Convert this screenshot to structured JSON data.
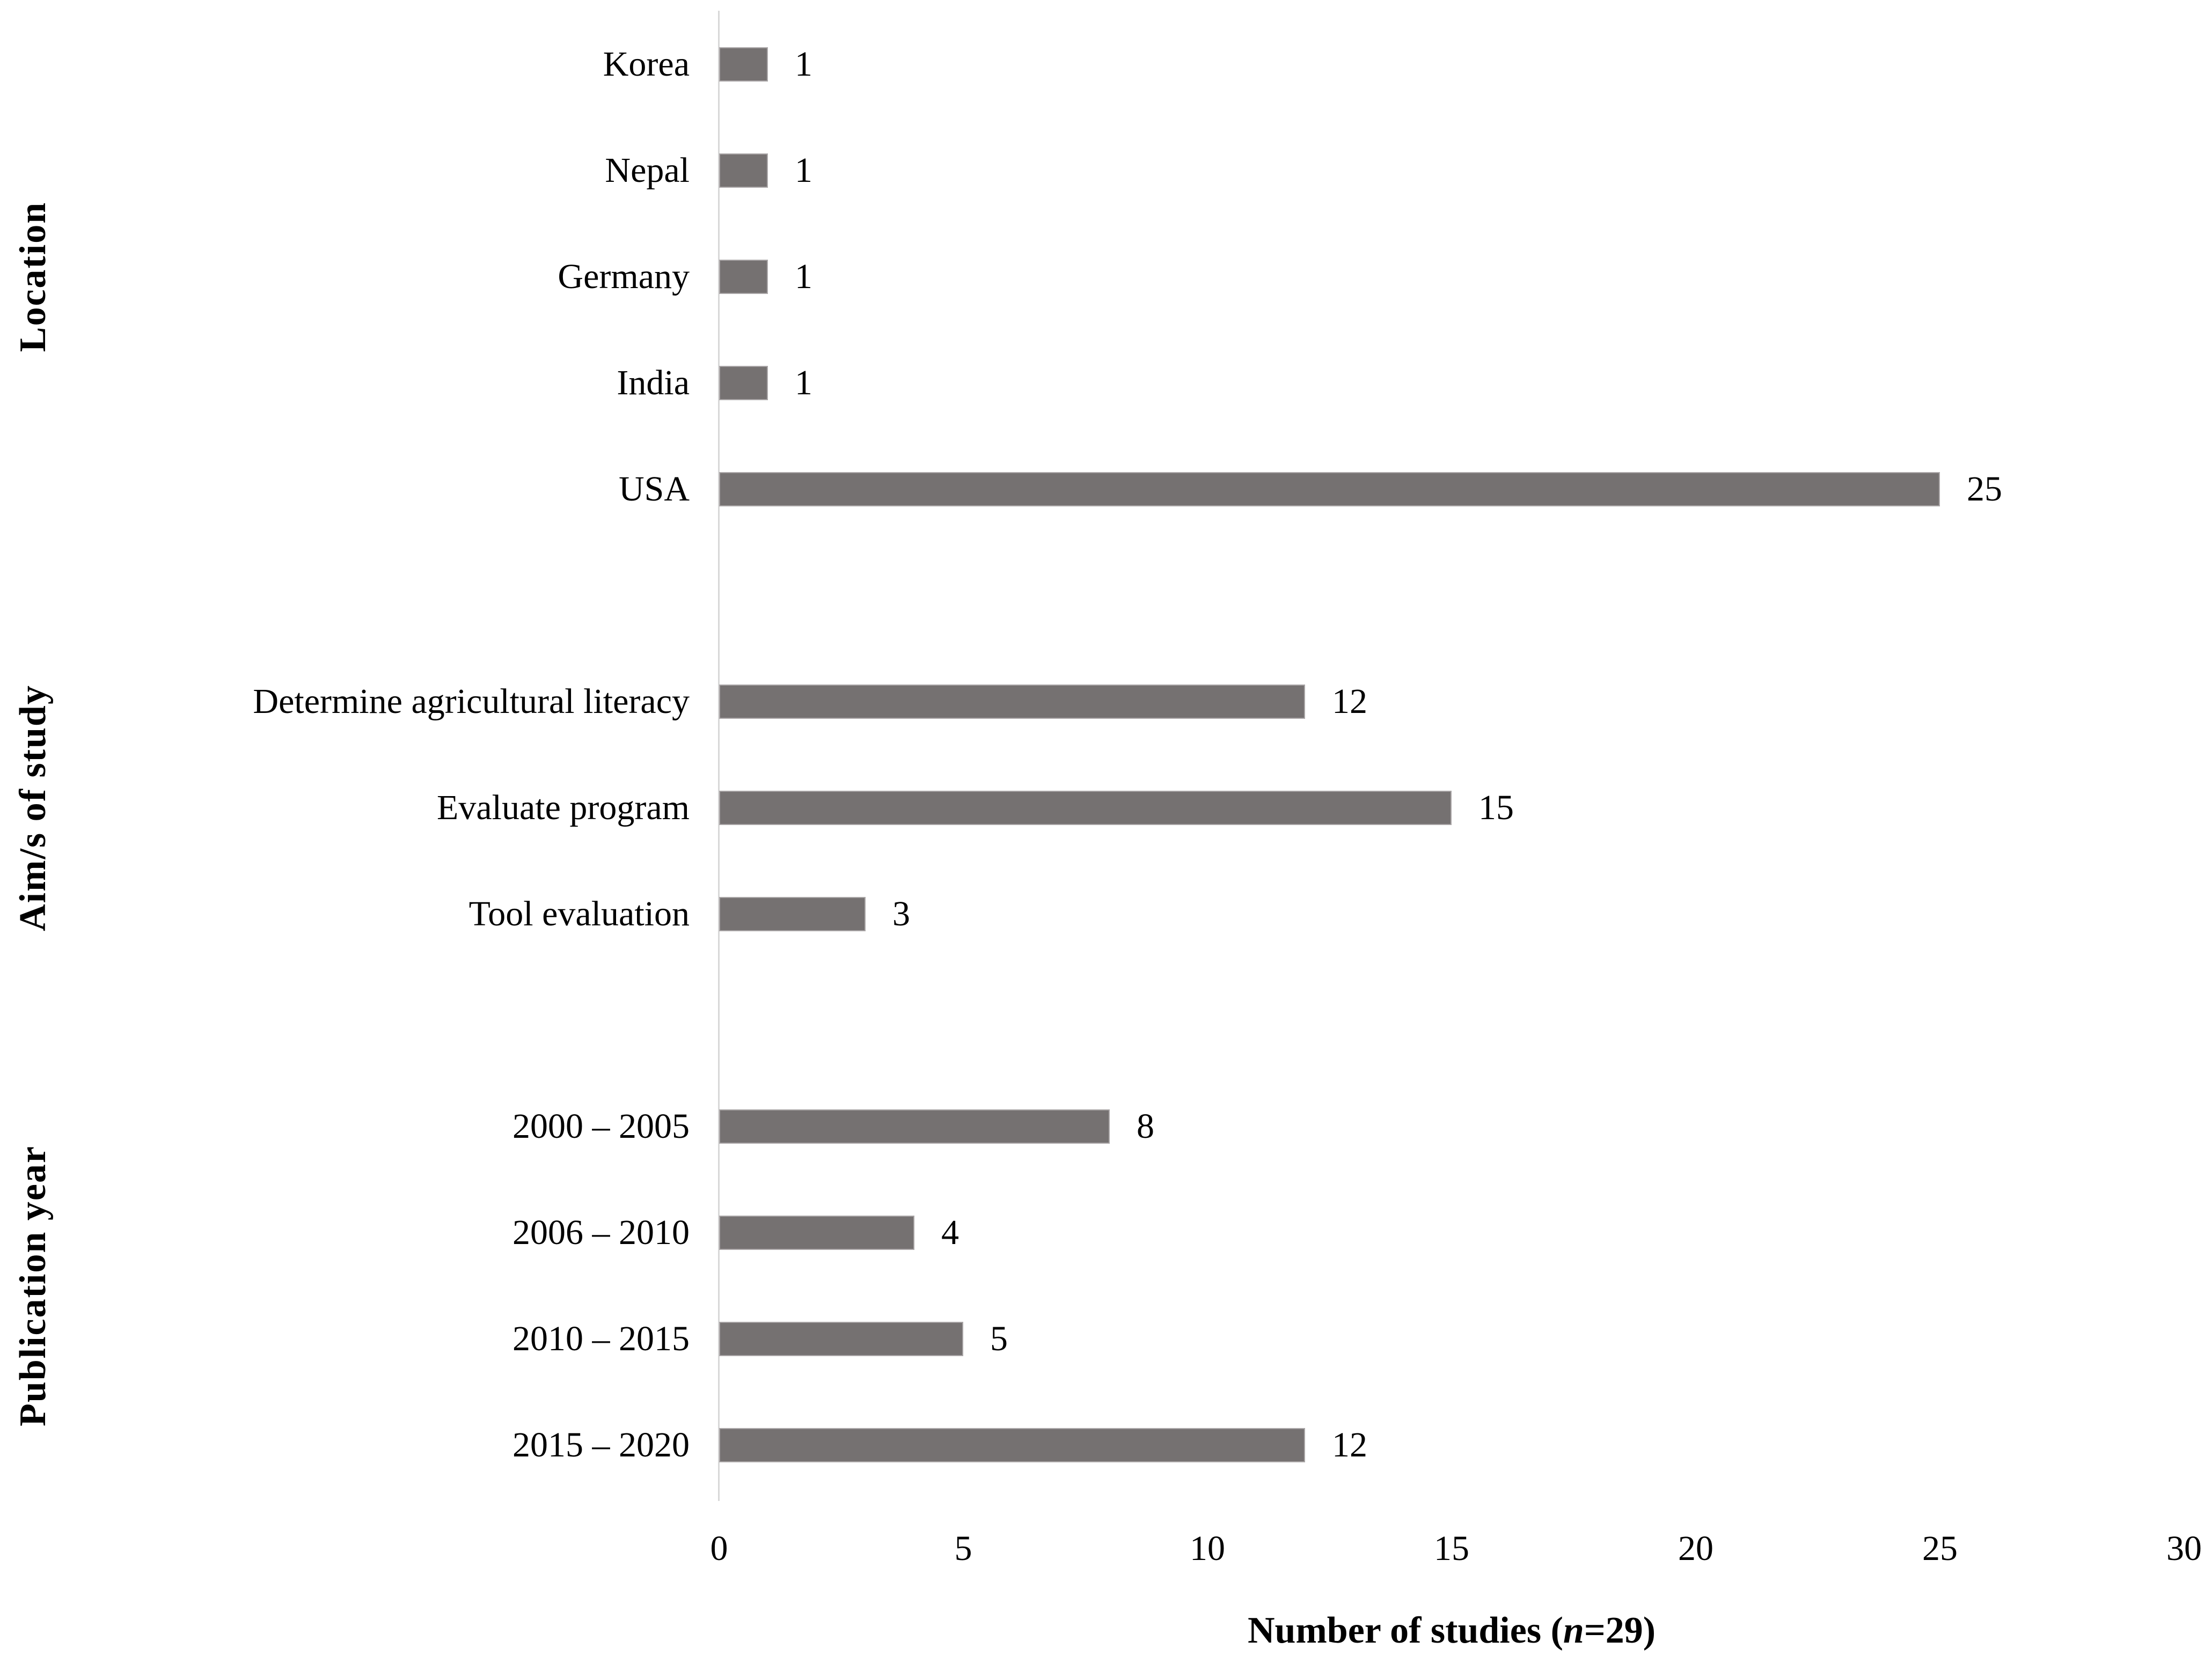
{
  "chart_data": {
    "type": "bar",
    "orientation": "horizontal",
    "xlabel_prefix": "Number of studies (",
    "xlabel_n": "n",
    "xlabel_suffix": "=29)",
    "xlim": [
      0,
      30
    ],
    "xticks": [
      0,
      5,
      10,
      15,
      20,
      25,
      30
    ],
    "bar_color": "#757171",
    "axis_line_color": "#d8d8d8",
    "grid": false,
    "groups": [
      {
        "label": "Location",
        "categories": [
          "Korea",
          "Nepal",
          "Germany",
          "India",
          "USA"
        ],
        "values": [
          1,
          1,
          1,
          1,
          25
        ]
      },
      {
        "label": "Aim/s of study",
        "categories": [
          "Determine agricultural literacy",
          "Evaluate program",
          "Tool evaluation"
        ],
        "values": [
          12,
          15,
          3
        ]
      },
      {
        "label": "Publication year",
        "categories": [
          "2000 – 2005",
          "2006 – 2010",
          "2010 – 2015",
          "2015 – 2020"
        ],
        "values": [
          8,
          4,
          5,
          12
        ]
      }
    ]
  }
}
